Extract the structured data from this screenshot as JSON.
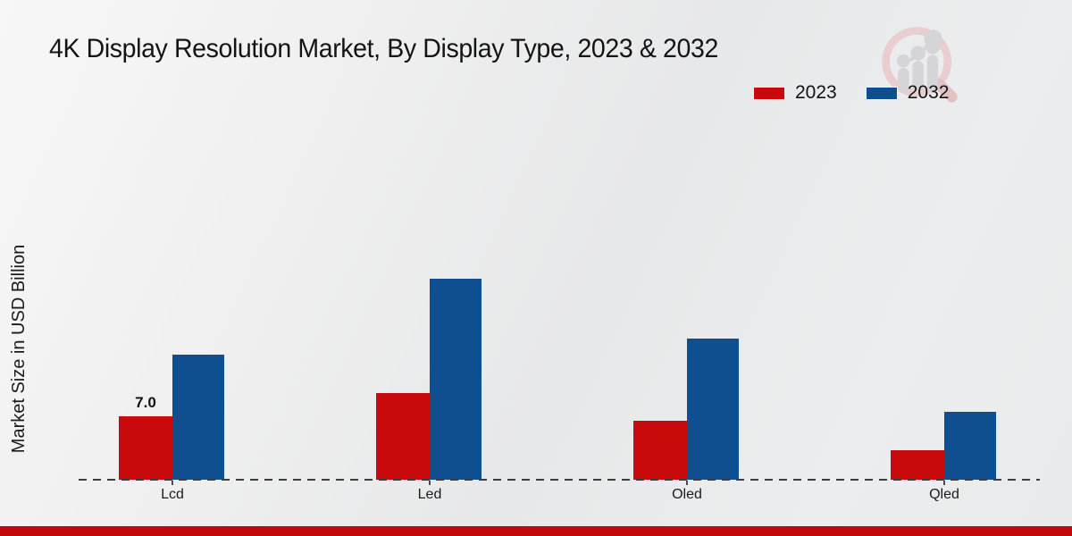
{
  "chart_data": {
    "type": "bar",
    "title": "4K Display Resolution Market, By Display Type, 2023 & 2032",
    "xlabel": "",
    "ylabel": "Market Size in USD Billion",
    "units": "USD Billion",
    "categories": [
      "Lcd",
      "Led",
      "Oled",
      "Qled"
    ],
    "series": [
      {
        "name": "2023",
        "color": "#c90a0c",
        "values": [
          7.0,
          9.6,
          6.5,
          3.3
        ]
      },
      {
        "name": "2032",
        "color": "#0f4f8f",
        "values": [
          13.8,
          22.2,
          15.6,
          7.5
        ]
      }
    ],
    "data_labels": [
      {
        "series": "2023",
        "category": "Lcd",
        "text": "7.0"
      }
    ],
    "ylim": [
      0,
      25
    ],
    "grid": false,
    "legend_position": "top-right",
    "axis_line_style": "dashed"
  },
  "footer_bar_color": "#c40708",
  "icons": {
    "watermark": "magnifier-growth-chart-logo"
  }
}
